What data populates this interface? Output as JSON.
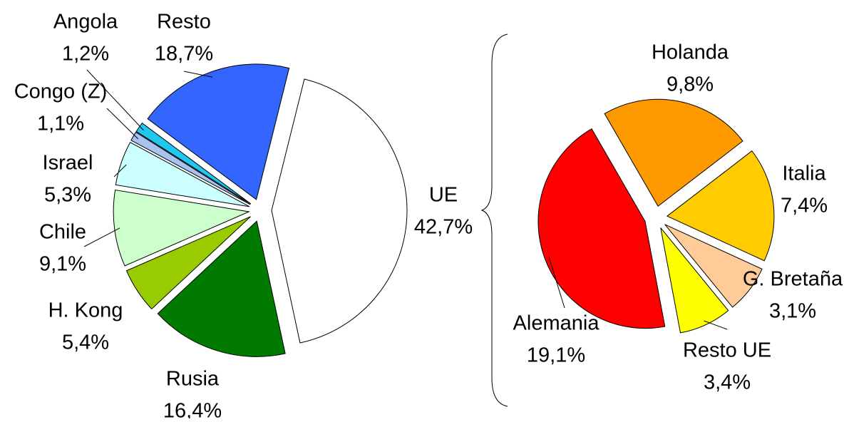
{
  "chart_data": [
    {
      "type": "pie",
      "categories": [
        "UE",
        "Rusia",
        "H. Kong",
        "Chile",
        "Israel",
        "Congo (Z)",
        "Angola",
        "Resto"
      ],
      "values": [
        42.7,
        16.4,
        5.4,
        9.1,
        5.3,
        1.1,
        1.2,
        18.7
      ],
      "value_labels": [
        "42,7%",
        "16,4%",
        "5,4%",
        "9,1%",
        "5,3%",
        "1,1%",
        "1,2%",
        "18,7%"
      ],
      "colors": [
        "#ffffff",
        "#007a00",
        "#99cc00",
        "#ccffcc",
        "#ccffff",
        "#a6c4f2",
        "#1ec8f0",
        "#3366ff"
      ]
    },
    {
      "type": "pie",
      "categories": [
        "Holanda",
        "Italia",
        "G. Bretaña",
        "Resto UE",
        "Alemania"
      ],
      "values": [
        9.8,
        7.4,
        3.1,
        3.4,
        19.1
      ],
      "value_labels": [
        "9,8%",
        "7,4%",
        "3,1%",
        "3,4%",
        "19,1%"
      ],
      "colors": [
        "#ff9900",
        "#ffcc00",
        "#ffcc99",
        "#ffff00",
        "#ff0000"
      ]
    }
  ]
}
